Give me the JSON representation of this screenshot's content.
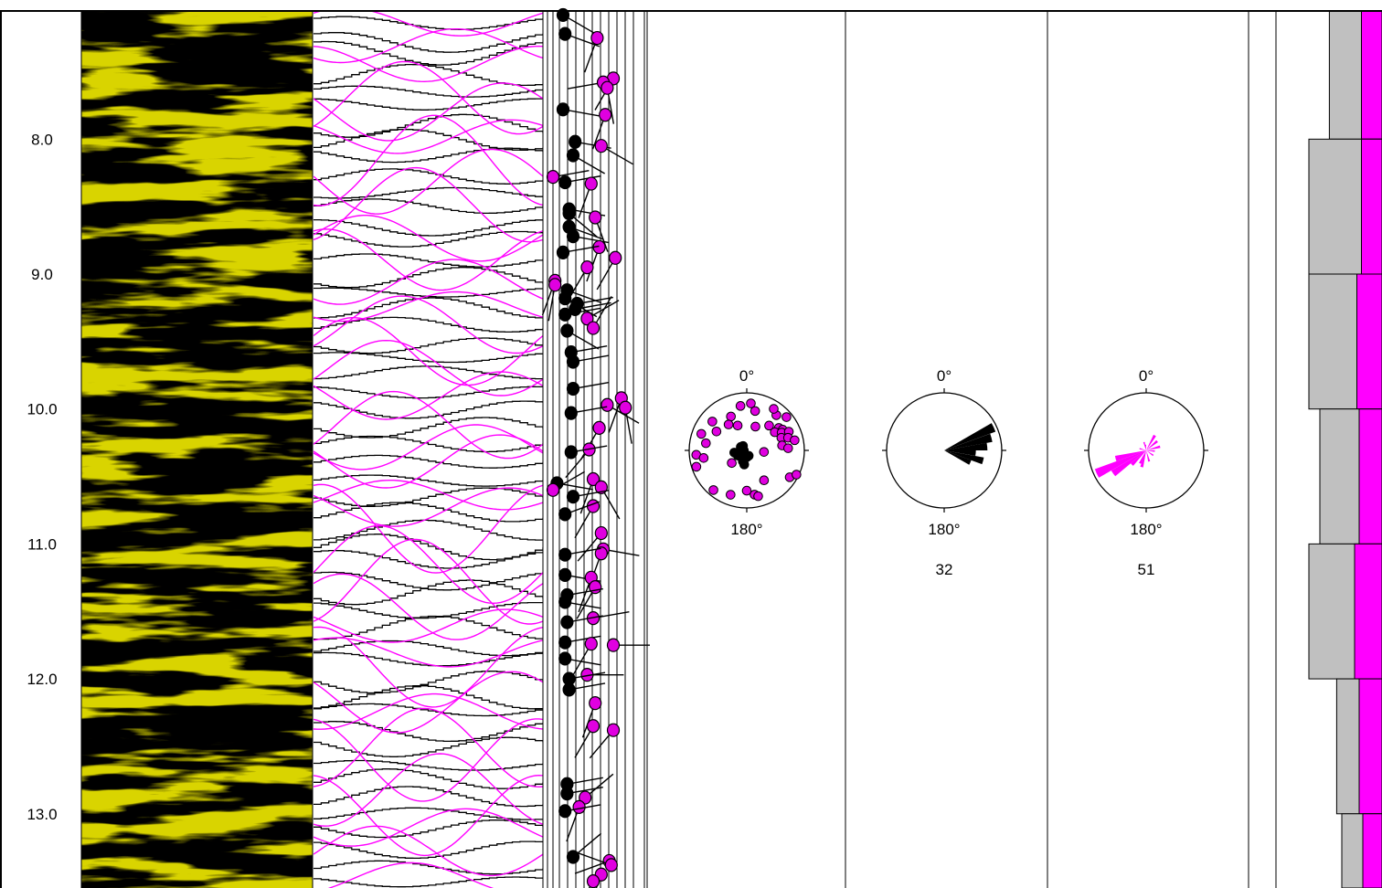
{
  "chart_data": {
    "type": "well-log",
    "depth_axis": {
      "range": [
        7.05,
        13.55
      ],
      "ticks": [
        "8.0",
        "9.0",
        "10.0",
        "11.0",
        "12.0",
        "13.0"
      ],
      "tick_values": [
        8.0,
        9.0,
        10.0,
        11.0,
        12.0,
        13.0
      ]
    },
    "tracks": {
      "image": {
        "color": "#d9d400"
      },
      "sinusoids": {
        "colors": {
          "bedding": "#000000",
          "fracture": "#ff00ff"
        },
        "bedding_count": 52,
        "fracture_count": 38
      },
      "tadpoles": {
        "colors": {
          "bedding": "#000000",
          "fracture": "#e000e0"
        },
        "points": [
          {
            "d": 7.08,
            "dip": 5,
            "az": 120,
            "t": "b"
          },
          {
            "d": 7.22,
            "dip": 6,
            "az": 110,
            "t": "b"
          },
          {
            "d": 7.25,
            "dip": 22,
            "az": 200,
            "t": "f"
          },
          {
            "d": 7.55,
            "dip": 30,
            "az": 210,
            "t": "f"
          },
          {
            "d": 7.58,
            "dip": 25,
            "az": 260,
            "t": "f"
          },
          {
            "d": 7.62,
            "dip": 27,
            "az": 170,
            "t": "f"
          },
          {
            "d": 7.78,
            "dip": 5,
            "az": 100,
            "t": "b"
          },
          {
            "d": 7.82,
            "dip": 26,
            "az": 200,
            "t": "f"
          },
          {
            "d": 8.02,
            "dip": 11,
            "az": 100,
            "t": "b"
          },
          {
            "d": 8.05,
            "dip": 24,
            "az": 120,
            "t": "f"
          },
          {
            "d": 8.12,
            "dip": 10,
            "az": 120,
            "t": "b"
          },
          {
            "d": 8.28,
            "dip": 0,
            "az": 80,
            "t": "f"
          },
          {
            "d": 8.32,
            "dip": 6,
            "az": 80,
            "t": "b"
          },
          {
            "d": 8.33,
            "dip": 19,
            "az": 200,
            "t": "f"
          },
          {
            "d": 8.52,
            "dip": 8,
            "az": 100,
            "t": "b"
          },
          {
            "d": 8.55,
            "dip": 8,
            "az": 130,
            "t": "b"
          },
          {
            "d": 8.58,
            "dip": 21,
            "az": 160,
            "t": "f"
          },
          {
            "d": 8.65,
            "dip": 8,
            "az": 110,
            "t": "b"
          },
          {
            "d": 8.72,
            "dip": 10,
            "az": 100,
            "t": "b"
          },
          {
            "d": 8.8,
            "dip": 23,
            "az": 200,
            "t": "f"
          },
          {
            "d": 8.84,
            "dip": 5,
            "az": 80,
            "t": "b"
          },
          {
            "d": 8.88,
            "dip": 31,
            "az": 210,
            "t": "f"
          },
          {
            "d": 8.95,
            "dip": 17,
            "az": 210,
            "t": "f"
          },
          {
            "d": 9.05,
            "dip": 1,
            "az": 200,
            "t": "f"
          },
          {
            "d": 9.08,
            "dip": 1,
            "az": 190,
            "t": "f"
          },
          {
            "d": 9.12,
            "dip": 7,
            "az": 110,
            "t": "b"
          },
          {
            "d": 9.18,
            "dip": 6,
            "az": 120,
            "t": "b"
          },
          {
            "d": 9.22,
            "dip": 12,
            "az": 80,
            "t": "b"
          },
          {
            "d": 9.26,
            "dip": 11,
            "az": 80,
            "t": "b"
          },
          {
            "d": 9.3,
            "dip": 6,
            "az": 80,
            "t": "b"
          },
          {
            "d": 9.33,
            "dip": 17,
            "az": 60,
            "t": "f"
          },
          {
            "d": 9.4,
            "dip": 20,
            "az": 30,
            "t": "f"
          },
          {
            "d": 9.42,
            "dip": 7,
            "az": 120,
            "t": "b"
          },
          {
            "d": 9.58,
            "dip": 9,
            "az": 80,
            "t": "b"
          },
          {
            "d": 9.65,
            "dip": 10,
            "az": 80,
            "t": "b"
          },
          {
            "d": 9.85,
            "dip": 10,
            "az": 80,
            "t": "b"
          },
          {
            "d": 9.92,
            "dip": 34,
            "az": 200,
            "t": "f"
          },
          {
            "d": 9.97,
            "dip": 27,
            "az": 120,
            "t": "f"
          },
          {
            "d": 9.99,
            "dip": 36,
            "az": 170,
            "t": "f"
          },
          {
            "d": 10.03,
            "dip": 9,
            "az": 80,
            "t": "b"
          },
          {
            "d": 10.14,
            "dip": 23,
            "az": 210,
            "t": "f"
          },
          {
            "d": 10.3,
            "dip": 18,
            "az": 220,
            "t": "f"
          },
          {
            "d": 10.32,
            "dip": 9,
            "az": 80,
            "t": "b"
          },
          {
            "d": 10.52,
            "dip": 20,
            "az": 200,
            "t": "f"
          },
          {
            "d": 10.55,
            "dip": 2,
            "az": 100,
            "t": "b"
          },
          {
            "d": 10.58,
            "dip": 24,
            "az": 150,
            "t": "f"
          },
          {
            "d": 10.6,
            "dip": 0,
            "az": 60,
            "t": "f"
          },
          {
            "d": 10.65,
            "dip": 10,
            "az": 80,
            "t": "b"
          },
          {
            "d": 10.72,
            "dip": 20,
            "az": 210,
            "t": "f"
          },
          {
            "d": 10.78,
            "dip": 6,
            "az": 70,
            "t": "b"
          },
          {
            "d": 10.92,
            "dip": 24,
            "az": 220,
            "t": "f"
          },
          {
            "d": 11.04,
            "dip": 25,
            "az": 100,
            "t": "f"
          },
          {
            "d": 11.07,
            "dip": 24,
            "az": 200,
            "t": "f"
          },
          {
            "d": 11.08,
            "dip": 6,
            "az": 80,
            "t": "b"
          },
          {
            "d": 11.23,
            "dip": 6,
            "az": 100,
            "t": "b"
          },
          {
            "d": 11.25,
            "dip": 19,
            "az": 200,
            "t": "f"
          },
          {
            "d": 11.32,
            "dip": 21,
            "az": 210,
            "t": "f"
          },
          {
            "d": 11.38,
            "dip": 7,
            "az": 80,
            "t": "b"
          },
          {
            "d": 11.43,
            "dip": 6,
            "az": 100,
            "t": "b"
          },
          {
            "d": 11.55,
            "dip": 20,
            "az": 80,
            "t": "f"
          },
          {
            "d": 11.58,
            "dip": 7,
            "az": 80,
            "t": "b"
          },
          {
            "d": 11.73,
            "dip": 6,
            "az": 80,
            "t": "b"
          },
          {
            "d": 11.74,
            "dip": 19,
            "az": 210,
            "t": "f"
          },
          {
            "d": 11.75,
            "dip": 30,
            "az": 90,
            "t": "f"
          },
          {
            "d": 11.85,
            "dip": 6,
            "az": 100,
            "t": "b"
          },
          {
            "d": 11.97,
            "dip": 17,
            "az": 90,
            "t": "f"
          },
          {
            "d": 12.0,
            "dip": 8,
            "az": 80,
            "t": "b"
          },
          {
            "d": 12.08,
            "dip": 8,
            "az": 80,
            "t": "b"
          },
          {
            "d": 12.18,
            "dip": 21,
            "az": 200,
            "t": "f"
          },
          {
            "d": 12.35,
            "dip": 20,
            "az": 210,
            "t": "f"
          },
          {
            "d": 12.38,
            "dip": 30,
            "az": 220,
            "t": "f"
          },
          {
            "d": 12.78,
            "dip": 7,
            "az": 80,
            "t": "b"
          },
          {
            "d": 12.85,
            "dip": 7,
            "az": 80,
            "t": "b"
          },
          {
            "d": 12.88,
            "dip": 16,
            "az": 50,
            "t": "f"
          },
          {
            "d": 12.95,
            "dip": 13,
            "az": 200,
            "t": "f"
          },
          {
            "d": 12.98,
            "dip": 6,
            "az": 80,
            "t": "b"
          },
          {
            "d": 13.32,
            "dip": 10,
            "az": 50,
            "t": "b"
          },
          {
            "d": 13.35,
            "dip": 28,
            "az": 250,
            "t": "f"
          },
          {
            "d": 13.38,
            "dip": 29,
            "az": 290,
            "t": "f"
          },
          {
            "d": 13.45,
            "dip": 24,
            "az": 200,
            "t": "f"
          },
          {
            "d": 13.5,
            "dip": 20,
            "az": 210,
            "t": "f"
          }
        ]
      },
      "stereonet": {
        "north_label": "0°",
        "south_label": "180°",
        "poles": [
          {
            "az": 5,
            "r": 0.82,
            "t": "f"
          },
          {
            "az": 12,
            "r": 0.7,
            "t": "f"
          },
          {
            "az": -8,
            "r": 0.78,
            "t": "f"
          },
          {
            "az": -25,
            "r": 0.65,
            "t": "f"
          },
          {
            "az": -35,
            "r": 0.55,
            "t": "f"
          },
          {
            "az": -50,
            "r": 0.78,
            "t": "f"
          },
          {
            "az": -58,
            "r": 0.62,
            "t": "f"
          },
          {
            "az": -70,
            "r": 0.84,
            "t": "f"
          },
          {
            "az": -80,
            "r": 0.72,
            "t": "f"
          },
          {
            "az": -95,
            "r": 0.88,
            "t": "f"
          },
          {
            "az": -100,
            "r": 0.76,
            "t": "f"
          },
          {
            "az": -108,
            "r": 0.92,
            "t": "f"
          },
          {
            "az": -140,
            "r": 0.9,
            "t": "f"
          },
          {
            "az": -160,
            "r": 0.82,
            "t": "f"
          },
          {
            "az": -180,
            "r": 0.7,
            "t": "f"
          },
          {
            "az": 170,
            "r": 0.78,
            "t": "f"
          },
          {
            "az": 166,
            "r": 0.82,
            "t": "f"
          },
          {
            "az": 150,
            "r": 0.6,
            "t": "f"
          },
          {
            "az": 122,
            "r": 0.88,
            "t": "f"
          },
          {
            "az": 116,
            "r": 0.96,
            "t": "f"
          },
          {
            "az": 40,
            "r": 0.8,
            "t": "f"
          },
          {
            "az": 42,
            "r": 0.58,
            "t": "f"
          },
          {
            "az": 55,
            "r": 0.68,
            "t": "f"
          },
          {
            "az": 57,
            "r": 0.58,
            "t": "f"
          },
          {
            "az": 60,
            "r": 0.72,
            "t": "f"
          },
          {
            "az": 63,
            "r": 0.68,
            "t": "f"
          },
          {
            "az": 66,
            "r": 0.8,
            "t": "f"
          },
          {
            "az": 70,
            "r": 0.64,
            "t": "f"
          },
          {
            "az": 73,
            "r": 0.75,
            "t": "f"
          },
          {
            "az": 78,
            "r": 0.85,
            "t": "f"
          },
          {
            "az": 82,
            "r": 0.62,
            "t": "f"
          },
          {
            "az": 87,
            "r": 0.72,
            "t": "f"
          },
          {
            "az": 50,
            "r": 0.9,
            "t": "f"
          },
          {
            "az": 33,
            "r": 0.86,
            "t": "f"
          },
          {
            "az": 20,
            "r": 0.44,
            "t": "f"
          },
          {
            "az": -20,
            "r": 0.46,
            "t": "f"
          },
          {
            "az": 95,
            "r": 0.3,
            "t": "f"
          },
          {
            "az": -130,
            "r": 0.34,
            "t": "f"
          },
          {
            "az": -90,
            "r": 0.05,
            "t": "b"
          },
          {
            "az": -60,
            "r": 0.12,
            "t": "b"
          },
          {
            "az": -110,
            "r": 0.1,
            "t": "b"
          },
          {
            "az": -150,
            "r": 0.13,
            "t": "b"
          },
          {
            "az": -160,
            "r": 0.2,
            "t": "b"
          },
          {
            "az": -170,
            "r": 0.25,
            "t": "b"
          },
          {
            "az": -120,
            "r": 0.18,
            "t": "b"
          },
          {
            "az": -75,
            "r": 0.08,
            "t": "b"
          },
          {
            "az": -40,
            "r": 0.1,
            "t": "b"
          },
          {
            "az": -100,
            "r": 0.22,
            "t": "b"
          },
          {
            "az": 180,
            "r": 0.12,
            "t": "b"
          },
          {
            "az": 160,
            "r": 0.1,
            "t": "b"
          }
        ]
      },
      "rose_bedding": {
        "north_label": "0°",
        "south_label": "180°",
        "count": "32",
        "color": "#000000",
        "petals": [
          {
            "az": 65,
            "r": 0.95
          },
          {
            "az": 75,
            "r": 0.85
          },
          {
            "az": 85,
            "r": 0.75
          },
          {
            "az": 95,
            "r": 0.55
          },
          {
            "az": 105,
            "r": 0.7
          },
          {
            "az": 115,
            "r": 0.5
          }
        ]
      },
      "rose_fracture": {
        "north_label": "0°",
        "south_label": "180°",
        "count": "51",
        "color": "#ff00ff",
        "petals": [
          {
            "az": 245,
            "r": 0.95
          },
          {
            "az": 235,
            "r": 0.7
          },
          {
            "az": 255,
            "r": 0.55
          },
          {
            "az": 225,
            "r": 0.35
          },
          {
            "az": 195,
            "r": 0.3
          },
          {
            "az": 205,
            "r": 0.25
          },
          {
            "az": 30,
            "r": 0.3
          },
          {
            "az": 50,
            "r": 0.25
          },
          {
            "az": 75,
            "r": 0.25
          },
          {
            "az": 95,
            "r": 0.15
          },
          {
            "az": 125,
            "r": 0.15
          },
          {
            "az": 345,
            "r": 0.15
          },
          {
            "az": 355,
            "r": 0.1
          },
          {
            "az": 285,
            "r": 0.12
          },
          {
            "az": 165,
            "r": 0.2
          }
        ]
      },
      "bars": {
        "colors": {
          "gray": "#c0c0c0",
          "magenta": "#ff00ff"
        },
        "intervals": [
          {
            "top": 7.05,
            "bottom": 8.0,
            "gray": 0.72,
            "magenta": 0.45
          },
          {
            "top": 8.0,
            "bottom": 9.0,
            "gray": 1.0,
            "magenta": 0.45
          },
          {
            "top": 9.0,
            "bottom": 10.0,
            "gray": 1.0,
            "magenta": 0.55
          },
          {
            "top": 10.0,
            "bottom": 11.0,
            "gray": 0.85,
            "magenta": 0.5
          },
          {
            "top": 11.0,
            "bottom": 12.0,
            "gray": 1.0,
            "magenta": 0.6
          },
          {
            "top": 12.0,
            "bottom": 13.0,
            "gray": 0.62,
            "magenta": 0.5
          },
          {
            "top": 13.0,
            "bottom": 13.55,
            "gray": 0.55,
            "magenta": 0.42
          }
        ]
      }
    }
  }
}
